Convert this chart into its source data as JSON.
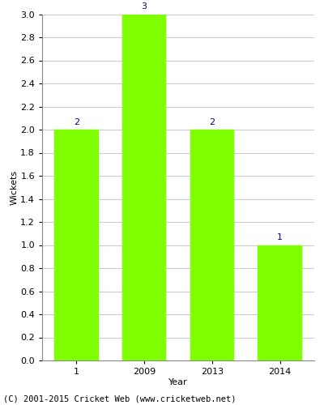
{
  "categories": [
    "1",
    "2009",
    "2013",
    "2014"
  ],
  "values": [
    2,
    3,
    2,
    1
  ],
  "bar_color": "#7FFF00",
  "bar_edge_color": "#7FFF00",
  "label_color": "#00008B",
  "label_fontsize": 8,
  "ylabel": "Wickets",
  "xlabel": "Year",
  "ylim": [
    0.0,
    3.0
  ],
  "yticks": [
    0.0,
    0.2,
    0.4,
    0.6,
    0.8,
    1.0,
    1.2,
    1.4,
    1.6,
    1.8,
    2.0,
    2.2,
    2.4,
    2.6,
    2.8,
    3.0
  ],
  "grid_color": "#cccccc",
  "background_color": "#ffffff",
  "footer_text": "(C) 2001-2015 Cricket Web (www.cricketweb.net)",
  "footer_fontsize": 7.5,
  "tick_fontsize": 8,
  "axis_label_fontsize": 8,
  "bar_width": 0.65
}
